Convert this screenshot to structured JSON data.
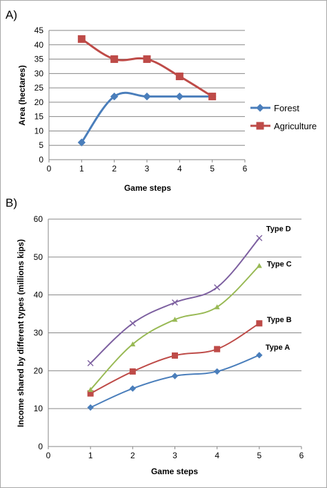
{
  "colors": {
    "forest": "#4a7ebb",
    "agriculture": "#be4b48",
    "type_a": "#4a7ebb",
    "type_b": "#be4b48",
    "type_c": "#98b954",
    "type_d": "#7d60a0",
    "grid": "#868686"
  },
  "chart_data": [
    {
      "panel_label": "A)",
      "type": "line",
      "xlabel": "Game steps",
      "ylabel": "Area (hectares)",
      "xlim": [
        0,
        6
      ],
      "ylim": [
        0,
        45
      ],
      "x_ticks": [
        0,
        1,
        2,
        3,
        4,
        5,
        6
      ],
      "y_ticks": [
        0,
        5,
        10,
        15,
        20,
        25,
        30,
        35,
        40,
        45
      ],
      "grid": true,
      "legend_position": "right",
      "series": [
        {
          "name": "Forest",
          "marker": "diamond",
          "x": [
            1,
            2,
            3,
            4,
            5
          ],
          "values": [
            6,
            22,
            22,
            22,
            22
          ]
        },
        {
          "name": "Agriculture",
          "marker": "square",
          "x": [
            1,
            2,
            3,
            4,
            5
          ],
          "values": [
            42,
            35,
            35,
            29,
            22
          ]
        }
      ]
    },
    {
      "panel_label": "B)",
      "type": "line",
      "xlabel": "Game steps",
      "ylabel": "Income shared by different types (millions kips)",
      "xlim": [
        0,
        6
      ],
      "ylim": [
        0,
        60
      ],
      "x_ticks": [
        0,
        1,
        2,
        3,
        4,
        5,
        6
      ],
      "y_ticks": [
        0,
        10,
        20,
        30,
        40,
        50,
        60
      ],
      "grid": true,
      "legend_position": "none",
      "series": [
        {
          "name": "Type A",
          "marker": "diamond",
          "x": [
            1,
            2,
            3,
            4,
            5
          ],
          "values": [
            10.3,
            15.3,
            18.6,
            19.8,
            24.1
          ]
        },
        {
          "name": "Type B",
          "marker": "square",
          "x": [
            1,
            2,
            3,
            4,
            5
          ],
          "values": [
            14,
            19.8,
            24,
            25.7,
            32.5
          ]
        },
        {
          "name": "Type C",
          "marker": "triangle",
          "x": [
            1,
            2,
            3,
            4,
            5
          ],
          "values": [
            15,
            27,
            33.5,
            36.8,
            47.7
          ]
        },
        {
          "name": "Type D",
          "marker": "x",
          "x": [
            1,
            2,
            3,
            4,
            5
          ],
          "values": [
            22,
            32.5,
            38,
            42,
            55
          ]
        }
      ]
    }
  ]
}
